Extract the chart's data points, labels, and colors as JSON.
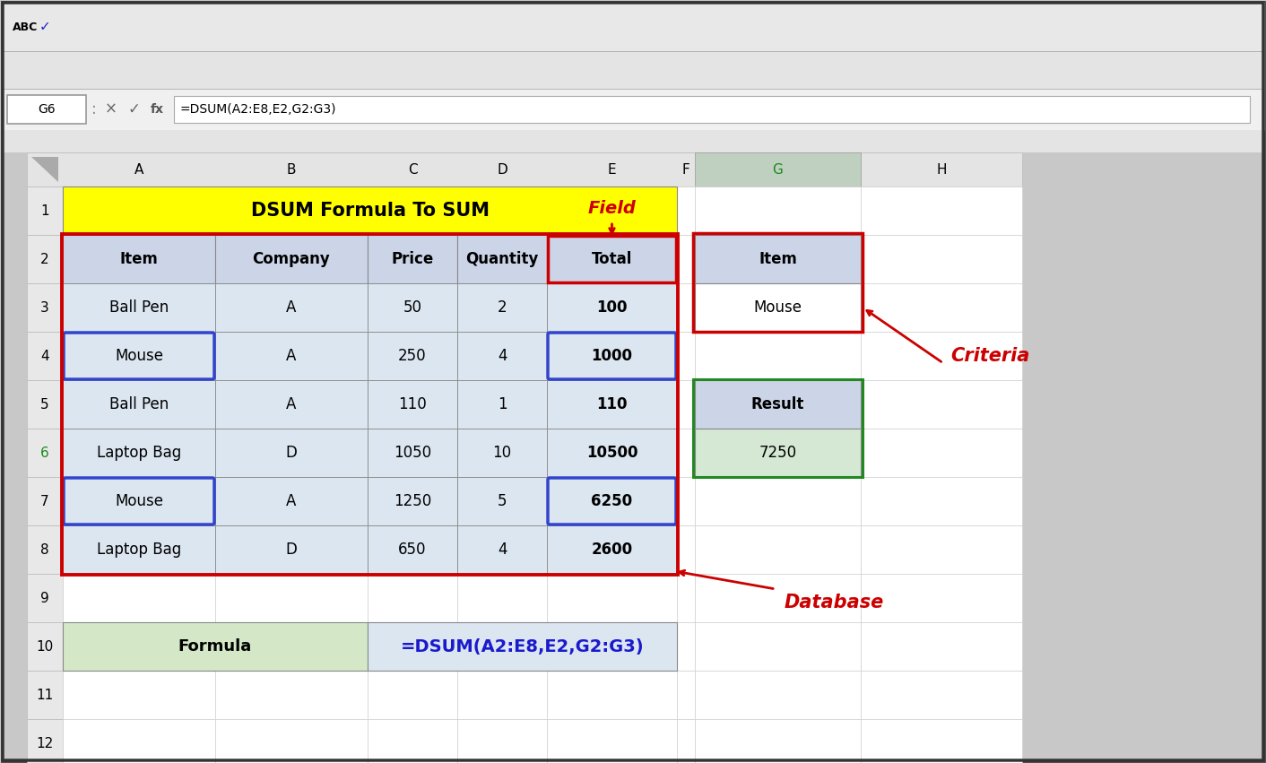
{
  "title": "DSUM Formula To SUM",
  "formula_bar_text": "=DSUM(A2:E8,E2,G2:G3)",
  "cell_ref": "G6",
  "col_labels": [
    "",
    "A",
    "B",
    "C",
    "D",
    "E",
    "F",
    "G",
    "H"
  ],
  "row_labels": [
    "1",
    "2",
    "3",
    "4",
    "5",
    "6",
    "7",
    "8",
    "9",
    "10",
    "11",
    "12"
  ],
  "main_headers": [
    "Item",
    "Company",
    "Price",
    "Quantity",
    "Total"
  ],
  "main_data": [
    [
      "Ball Pen",
      "A",
      "50",
      "2",
      "100"
    ],
    [
      "Mouse",
      "A",
      "250",
      "4",
      "1000"
    ],
    [
      "Ball Pen",
      "A",
      "110",
      "1",
      "110"
    ],
    [
      "Laptop Bag",
      "D",
      "1050",
      "10",
      "10500"
    ],
    [
      "Mouse",
      "A",
      "1250",
      "5",
      "6250"
    ],
    [
      "Laptop Bag",
      "D",
      "650",
      "4",
      "2600"
    ]
  ],
  "criteria_header": "Item",
  "criteria_value": "Mouse",
  "result_header": "Result",
  "result_value": "7250",
  "formula_label": "Formula",
  "formula_value": "=DSUM(A2:E8,E2,G2:G3)",
  "colors": {
    "outer_bg": "#c8c8c8",
    "toolbar_bg": "#e4e4e4",
    "menu_bg": "#e8e8e8",
    "formula_bar_bg": "#f0f0f0",
    "cell_ref_bg": "#ffffff",
    "sheet_bg": "#ffffff",
    "col_hdr_bg": "#e4e4e4",
    "col_hdr_G_bg": "#c0d0c0",
    "row_hdr_bg": "#e8e8e8",
    "row6_hdr_color": "#1a8a1a",
    "title_bg": "#ffff00",
    "main_hdr_bg": "#ccd5e8",
    "main_data_bg": "#dce6f1",
    "mouse_row_bg": "#dce6f1",
    "crit_hdr_bg": "#ccd5e8",
    "crit_val_bg": "#ffffff",
    "res_hdr_bg": "#ccd5e8",
    "res_val_bg": "#d4e8d4",
    "formula_lbl_bg": "#d4e8c8",
    "formula_val_bg": "#dce6f1",
    "red_border": "#cc0000",
    "blue_border": "#3344cc",
    "green_border": "#228822",
    "field_color": "#cc0000",
    "criteria_color": "#cc0000",
    "database_color": "#cc0000",
    "formula_val_color": "#1a1acc"
  }
}
